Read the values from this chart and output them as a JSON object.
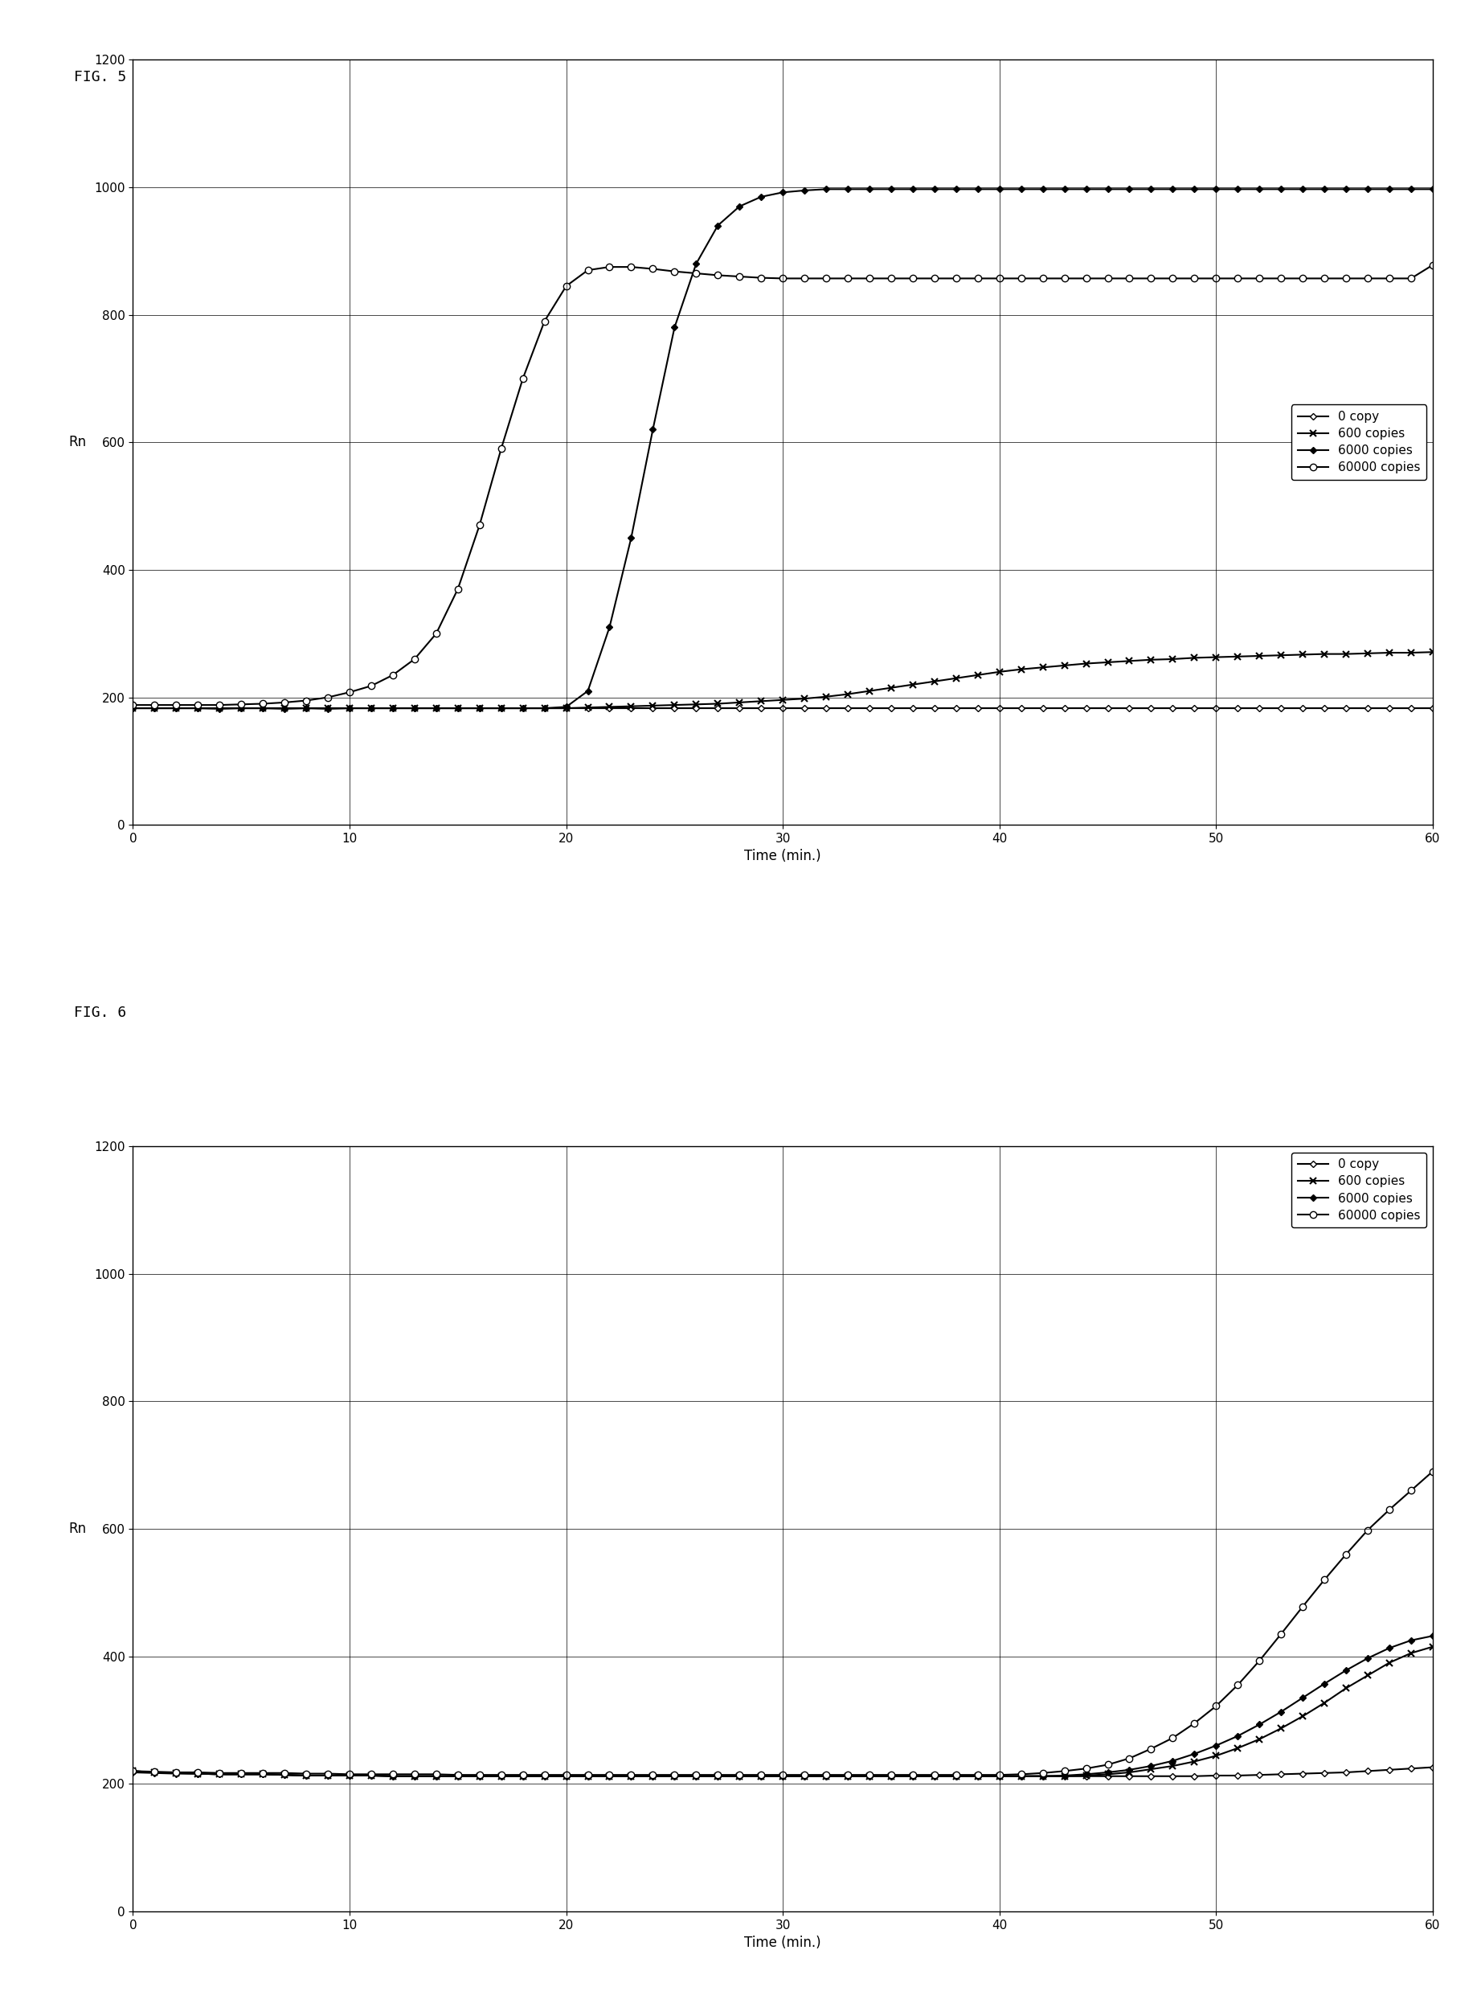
{
  "fig5_title": "FIG. 5",
  "fig6_title": "FIG. 6",
  "xlabel": "Time (min.)",
  "ylabel": "Rn",
  "xlim": [
    0,
    60
  ],
  "ylim": [
    0,
    1200
  ],
  "xticks": [
    0,
    10,
    20,
    30,
    40,
    50,
    60
  ],
  "yticks": [
    0,
    200,
    400,
    600,
    800,
    1000,
    1200
  ],
  "legend_labels": [
    "0 copy",
    "600 copies",
    "6000 copies",
    "60000 copies"
  ],
  "fig5": {
    "zero_copy": {
      "x": [
        0,
        1,
        2,
        3,
        4,
        5,
        6,
        7,
        8,
        9,
        10,
        11,
        12,
        13,
        14,
        15,
        16,
        17,
        18,
        19,
        20,
        21,
        22,
        23,
        24,
        25,
        26,
        27,
        28,
        29,
        30,
        31,
        32,
        33,
        34,
        35,
        36,
        37,
        38,
        39,
        40,
        41,
        42,
        43,
        44,
        45,
        46,
        47,
        48,
        49,
        50,
        51,
        52,
        53,
        54,
        55,
        56,
        57,
        58,
        59,
        60
      ],
      "y": [
        183,
        183,
        183,
        183,
        182,
        183,
        183,
        182,
        183,
        182,
        183,
        183,
        183,
        183,
        183,
        183,
        183,
        183,
        183,
        183,
        183,
        183,
        183,
        183,
        183,
        183,
        183,
        183,
        183,
        183,
        183,
        183,
        183,
        183,
        183,
        183,
        183,
        183,
        183,
        183,
        183,
        183,
        183,
        183,
        183,
        183,
        183,
        183,
        183,
        183,
        183,
        183,
        183,
        183,
        183,
        183,
        183,
        183,
        183,
        183,
        183
      ]
    },
    "600_copies": {
      "x": [
        0,
        1,
        2,
        3,
        4,
        5,
        6,
        7,
        8,
        9,
        10,
        11,
        12,
        13,
        14,
        15,
        16,
        17,
        18,
        19,
        20,
        21,
        22,
        23,
        24,
        25,
        26,
        27,
        28,
        29,
        30,
        31,
        32,
        33,
        34,
        35,
        36,
        37,
        38,
        39,
        40,
        41,
        42,
        43,
        44,
        45,
        46,
        47,
        48,
        49,
        50,
        51,
        52,
        53,
        54,
        55,
        56,
        57,
        58,
        59,
        60
      ],
      "y": [
        183,
        183,
        183,
        183,
        183,
        183,
        183,
        183,
        183,
        183,
        183,
        183,
        183,
        183,
        183,
        183,
        183,
        183,
        183,
        183,
        183,
        184,
        185,
        186,
        187,
        188,
        189,
        190,
        192,
        194,
        196,
        198,
        201,
        205,
        210,
        215,
        220,
        225,
        230,
        235,
        240,
        244,
        247,
        250,
        253,
        255,
        257,
        259,
        260,
        262,
        263,
        264,
        265,
        266,
        267,
        268,
        268,
        269,
        270,
        270,
        271
      ]
    },
    "6000_copies": {
      "x": [
        0,
        1,
        2,
        3,
        4,
        5,
        6,
        7,
        8,
        9,
        10,
        11,
        12,
        13,
        14,
        15,
        16,
        17,
        18,
        19,
        20,
        21,
        22,
        23,
        24,
        25,
        26,
        27,
        28,
        29,
        30,
        31,
        32,
        33,
        34,
        35,
        36,
        37,
        38,
        39,
        40,
        41,
        42,
        43,
        44,
        45,
        46,
        47,
        48,
        49,
        50,
        51,
        52,
        53,
        54,
        55,
        56,
        57,
        58,
        59,
        60
      ],
      "y": [
        183,
        183,
        183,
        183,
        183,
        183,
        183,
        183,
        183,
        183,
        183,
        183,
        183,
        183,
        183,
        183,
        183,
        183,
        183,
        183,
        185,
        210,
        310,
        450,
        620,
        780,
        880,
        940,
        970,
        985,
        992,
        995,
        997,
        997,
        997,
        997,
        997,
        997,
        997,
        997,
        997,
        997,
        997,
        997,
        997,
        997,
        997,
        997,
        997,
        997,
        997,
        997,
        997,
        997,
        997,
        997,
        997,
        997,
        997,
        997,
        997
      ]
    },
    "60000_copies": {
      "x": [
        0,
        1,
        2,
        3,
        4,
        5,
        6,
        7,
        8,
        9,
        10,
        11,
        12,
        13,
        14,
        15,
        16,
        17,
        18,
        19,
        20,
        21,
        22,
        23,
        24,
        25,
        26,
        27,
        28,
        29,
        30,
        31,
        32,
        33,
        34,
        35,
        36,
        37,
        38,
        39,
        40,
        41,
        42,
        43,
        44,
        45,
        46,
        47,
        48,
        49,
        50,
        51,
        52,
        53,
        54,
        55,
        56,
        57,
        58,
        59,
        60
      ],
      "y": [
        188,
        188,
        188,
        188,
        188,
        189,
        190,
        192,
        195,
        200,
        208,
        218,
        235,
        260,
        300,
        370,
        470,
        590,
        700,
        790,
        845,
        870,
        875,
        875,
        872,
        868,
        865,
        862,
        860,
        858,
        857,
        857,
        857,
        857,
        857,
        857,
        857,
        857,
        857,
        857,
        857,
        857,
        857,
        857,
        857,
        857,
        857,
        857,
        857,
        857,
        857,
        857,
        857,
        857,
        857,
        857,
        857,
        857,
        857,
        857,
        878
      ]
    }
  },
  "fig6": {
    "zero_copy": {
      "x": [
        0,
        1,
        2,
        3,
        4,
        5,
        6,
        7,
        8,
        9,
        10,
        11,
        12,
        13,
        14,
        15,
        16,
        17,
        18,
        19,
        20,
        21,
        22,
        23,
        24,
        25,
        26,
        27,
        28,
        29,
        30,
        31,
        32,
        33,
        34,
        35,
        36,
        37,
        38,
        39,
        40,
        41,
        42,
        43,
        44,
        45,
        46,
        47,
        48,
        49,
        50,
        51,
        52,
        53,
        54,
        55,
        56,
        57,
        58,
        59,
        60
      ],
      "y": [
        218,
        217,
        216,
        216,
        215,
        215,
        215,
        214,
        213,
        213,
        213,
        213,
        212,
        212,
        212,
        212,
        212,
        212,
        212,
        212,
        212,
        212,
        212,
        212,
        212,
        212,
        212,
        212,
        212,
        212,
        212,
        212,
        212,
        212,
        212,
        212,
        212,
        212,
        212,
        212,
        212,
        212,
        212,
        212,
        212,
        212,
        212,
        212,
        212,
        212,
        213,
        213,
        214,
        215,
        216,
        217,
        218,
        220,
        222,
        224,
        226
      ]
    },
    "600_copies": {
      "x": [
        0,
        1,
        2,
        3,
        4,
        5,
        6,
        7,
        8,
        9,
        10,
        11,
        12,
        13,
        14,
        15,
        16,
        17,
        18,
        19,
        20,
        21,
        22,
        23,
        24,
        25,
        26,
        27,
        28,
        29,
        30,
        31,
        32,
        33,
        34,
        35,
        36,
        37,
        38,
        39,
        40,
        41,
        42,
        43,
        44,
        45,
        46,
        47,
        48,
        49,
        50,
        51,
        52,
        53,
        54,
        55,
        56,
        57,
        58,
        59,
        60
      ],
      "y": [
        220,
        218,
        217,
        216,
        215,
        215,
        215,
        214,
        213,
        213,
        213,
        213,
        212,
        212,
        212,
        212,
        212,
        212,
        212,
        212,
        212,
        212,
        212,
        212,
        212,
        212,
        212,
        212,
        212,
        212,
        212,
        212,
        212,
        212,
        212,
        212,
        212,
        212,
        212,
        212,
        212,
        212,
        212,
        212,
        213,
        215,
        218,
        223,
        228,
        235,
        244,
        256,
        270,
        287,
        306,
        327,
        350,
        370,
        390,
        405,
        415
      ]
    },
    "6000_copies": {
      "x": [
        0,
        1,
        2,
        3,
        4,
        5,
        6,
        7,
        8,
        9,
        10,
        11,
        12,
        13,
        14,
        15,
        16,
        17,
        18,
        19,
        20,
        21,
        22,
        23,
        24,
        25,
        26,
        27,
        28,
        29,
        30,
        31,
        32,
        33,
        34,
        35,
        36,
        37,
        38,
        39,
        40,
        41,
        42,
        43,
        44,
        45,
        46,
        47,
        48,
        49,
        50,
        51,
        52,
        53,
        54,
        55,
        56,
        57,
        58,
        59,
        60
      ],
      "y": [
        220,
        218,
        217,
        216,
        215,
        215,
        215,
        214,
        213,
        213,
        213,
        213,
        212,
        212,
        212,
        212,
        212,
        212,
        212,
        212,
        212,
        212,
        212,
        212,
        212,
        212,
        212,
        212,
        212,
        212,
        212,
        212,
        212,
        212,
        212,
        212,
        212,
        212,
        212,
        212,
        212,
        212,
        212,
        213,
        215,
        218,
        222,
        228,
        236,
        247,
        260,
        275,
        293,
        313,
        335,
        357,
        378,
        397,
        413,
        425,
        432
      ]
    },
    "60000_copies": {
      "x": [
        0,
        1,
        2,
        3,
        4,
        5,
        6,
        7,
        8,
        9,
        10,
        11,
        12,
        13,
        14,
        15,
        16,
        17,
        18,
        19,
        20,
        21,
        22,
        23,
        24,
        25,
        26,
        27,
        28,
        29,
        30,
        31,
        32,
        33,
        34,
        35,
        36,
        37,
        38,
        39,
        40,
        41,
        42,
        43,
        44,
        45,
        46,
        47,
        48,
        49,
        50,
        51,
        52,
        53,
        54,
        55,
        56,
        57,
        58,
        59,
        60
      ],
      "y": [
        220,
        219,
        218,
        218,
        217,
        217,
        217,
        217,
        216,
        216,
        215,
        215,
        215,
        215,
        215,
        214,
        214,
        214,
        214,
        214,
        214,
        214,
        214,
        214,
        214,
        214,
        214,
        214,
        214,
        214,
        214,
        214,
        214,
        214,
        214,
        214,
        214,
        214,
        214,
        214,
        214,
        215,
        217,
        220,
        224,
        230,
        240,
        255,
        272,
        295,
        322,
        355,
        393,
        435,
        478,
        520,
        560,
        598,
        630,
        660,
        690
      ]
    }
  },
  "marker_size": 6,
  "line_width": 1.5,
  "background_color": "#ffffff",
  "title_fontsize": 13,
  "label_fontsize": 12,
  "tick_fontsize": 11,
  "legend_fontsize": 11
}
